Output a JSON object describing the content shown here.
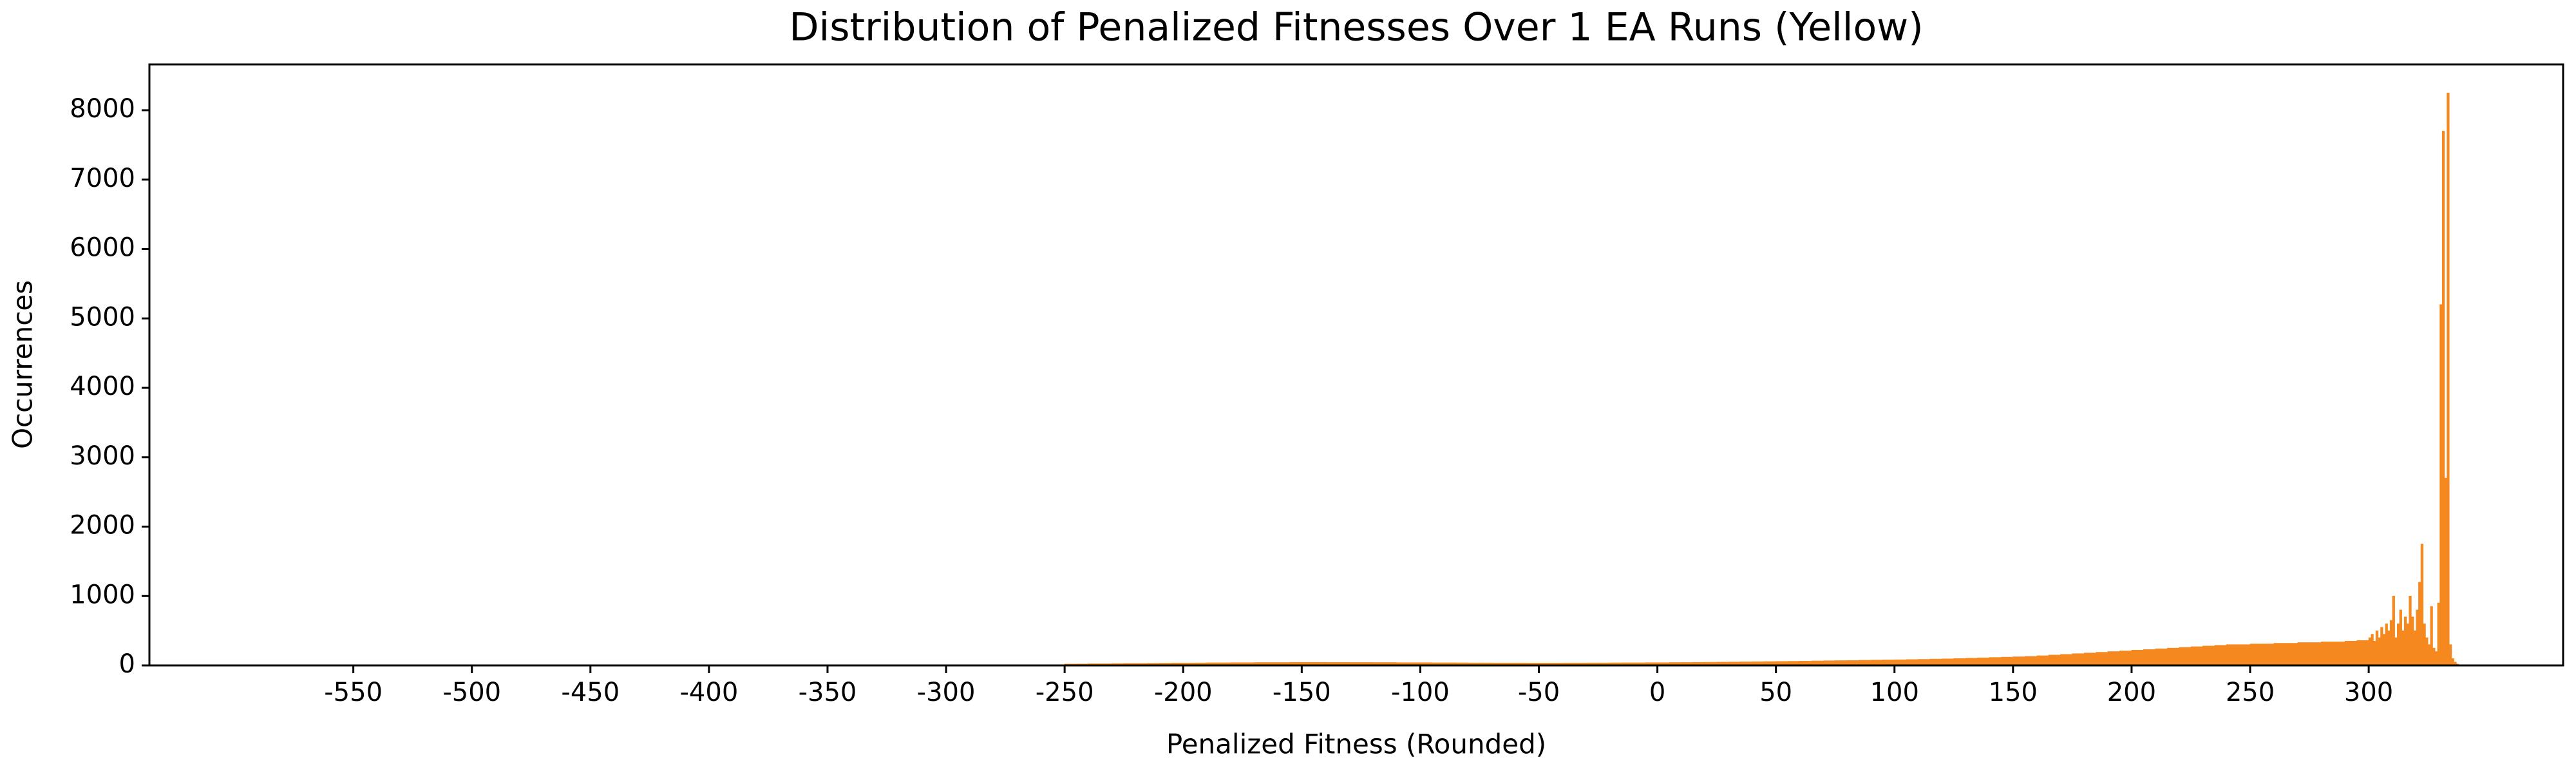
{
  "chart_data": {
    "type": "histogram",
    "title": "Distribution of Penalized Fitnesses Over 1 EA Runs (Yellow)",
    "x_label": "Penalized Fitness (Rounded)",
    "y_label": "Occurrences",
    "color": "#f5891f",
    "bins": [
      -250,
      -245,
      -240,
      -235,
      -230,
      -225,
      -220,
      -215,
      -210,
      -205,
      -200,
      -195,
      -190,
      -185,
      -180,
      -175,
      -170,
      -165,
      -160,
      -155,
      -150,
      -145,
      -140,
      -135,
      -130,
      -125,
      -120,
      -115,
      -110,
      -105,
      -100,
      -95,
      -90,
      -85,
      -80,
      -75,
      -70,
      -65,
      -60,
      -55,
      -50,
      -45,
      -40,
      -35,
      -30,
      -25,
      -20,
      -15,
      -10,
      -5,
      0,
      5,
      10,
      15,
      20,
      25,
      30,
      35,
      40,
      45,
      50,
      55,
      60,
      65,
      70,
      75,
      80,
      85,
      90,
      95,
      100,
      105,
      110,
      115,
      120,
      125,
      130,
      135,
      140,
      145,
      150,
      155,
      160,
      165,
      170,
      175,
      180,
      185,
      190,
      195,
      200,
      205,
      210,
      215,
      220,
      225,
      230,
      235,
      240,
      245,
      250,
      255,
      260,
      265,
      270,
      275,
      280,
      285,
      290,
      295,
      300,
      301,
      302,
      303,
      304,
      305,
      306,
      307,
      308,
      309,
      310,
      311,
      312,
      313,
      314,
      315,
      316,
      317,
      318,
      319,
      320,
      321,
      322,
      323,
      324,
      325,
      326,
      327,
      328,
      329,
      330,
      331,
      332,
      333,
      334,
      335,
      336,
      337,
      338
    ],
    "values": [
      20,
      22,
      25,
      25,
      28,
      30,
      30,
      32,
      33,
      35,
      35,
      36,
      38,
      38,
      40,
      40,
      42,
      42,
      42,
      45,
      45,
      45,
      44,
      44,
      43,
      43,
      42,
      42,
      40,
      40,
      40,
      38,
      38,
      37,
      36,
      36,
      35,
      35,
      35,
      34,
      34,
      34,
      35,
      35,
      36,
      36,
      37,
      38,
      38,
      40,
      40,
      42,
      43,
      45,
      46,
      48,
      50,
      52,
      54,
      56,
      58,
      60,
      62,
      65,
      68,
      70,
      72,
      75,
      78,
      80,
      82,
      85,
      88,
      92,
      95,
      100,
      105,
      110,
      115,
      120,
      125,
      130,
      140,
      150,
      160,
      170,
      180,
      190,
      200,
      210,
      220,
      230,
      240,
      250,
      260,
      270,
      280,
      290,
      300,
      300,
      310,
      310,
      320,
      320,
      330,
      330,
      340,
      340,
      350,
      360,
      400,
      450,
      350,
      500,
      400,
      550,
      450,
      600,
      500,
      650,
      1000,
      400,
      600,
      800,
      500,
      700,
      600,
      1000,
      700,
      500,
      800,
      1200,
      1750,
      600,
      400,
      300,
      850,
      250,
      200,
      900,
      5200,
      7700,
      2700,
      8250,
      300,
      100,
      50,
      20
    ],
    "xlim": [
      -636,
      382
    ],
    "ylim": [
      0,
      8660
    ],
    "xticks": [
      -550,
      -500,
      -450,
      -400,
      -350,
      -300,
      -250,
      -200,
      -150,
      -100,
      -50,
      0,
      50,
      100,
      150,
      200,
      250,
      300
    ],
    "yticks": [
      0,
      1000,
      2000,
      3000,
      4000,
      5000,
      6000,
      7000,
      8000
    ]
  }
}
